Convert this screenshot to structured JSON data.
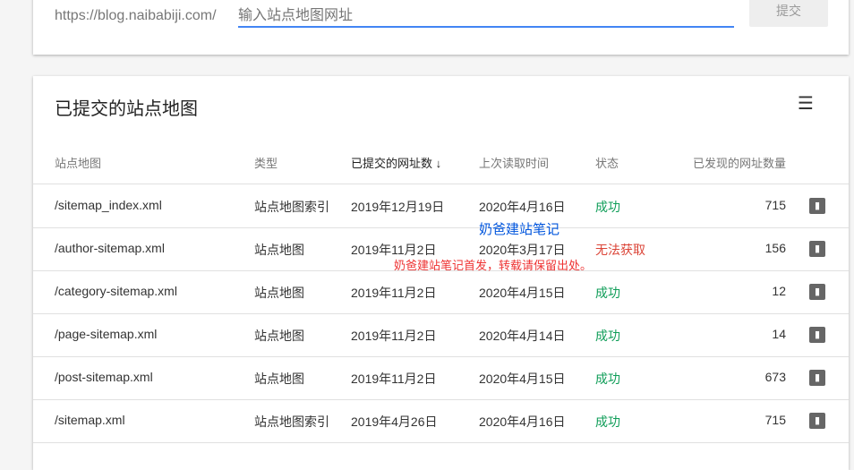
{
  "submit_bar": {
    "prefix": "https://blog.naibabiji.com/",
    "placeholder": "输入站点地图网址",
    "submit_label": "提交"
  },
  "list": {
    "title": "已提交的站点地图",
    "headers": [
      "站点地图",
      "类型",
      "已提交的网址数 ↓",
      "上次读取时间",
      "状态",
      "已发现的网址数量"
    ],
    "rows": [
      {
        "sitemap": "/sitemap_index.xml",
        "type": "站点地图索引",
        "submitted": "2019年12月19日",
        "last_read": "2020年4月16日",
        "status": "成功",
        "discovered": "715"
      },
      {
        "sitemap": "/author-sitemap.xml",
        "type": "站点地图",
        "submitted": "2019年11月2日",
        "last_read": "2020年3月17日",
        "status": "无法获取",
        "discovered": "156"
      },
      {
        "sitemap": "/category-sitemap.xml",
        "type": "站点地图",
        "submitted": "2019年11月2日",
        "last_read": "2020年4月15日",
        "status": "成功",
        "discovered": "12"
      },
      {
        "sitemap": "/page-sitemap.xml",
        "type": "站点地图",
        "submitted": "2019年11月2日",
        "last_read": "2020年4月14日",
        "status": "成功",
        "discovered": "14"
      },
      {
        "sitemap": "/post-sitemap.xml",
        "type": "站点地图",
        "submitted": "2019年11月2日",
        "last_read": "2020年4月15日",
        "status": "成功",
        "discovered": "673"
      },
      {
        "sitemap": "/sitemap.xml",
        "type": "站点地图索引",
        "submitted": "2019年4月26日",
        "last_read": "2020年4月16日",
        "status": "成功",
        "discovered": "715"
      }
    ]
  },
  "watermark": {
    "brand": "奶爸建站笔记",
    "notice": "奶爸建站笔记首发，转载请保留出处。"
  },
  "colors": {
    "success": "#0f9d58",
    "error": "#db4437",
    "accent": "#4285f4"
  }
}
